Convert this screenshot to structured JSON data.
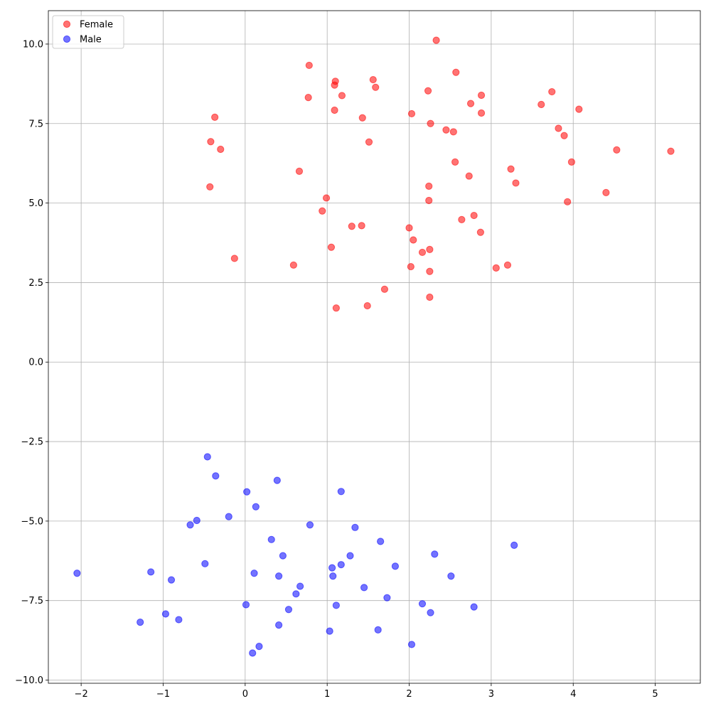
{
  "chart_data": {
    "type": "scatter",
    "title": "",
    "xlabel": "",
    "ylabel": "",
    "xlim": [
      -2.4,
      5.55
    ],
    "ylim": [
      -10.1,
      11.05
    ],
    "grid": true,
    "legend_position": "top-left",
    "xticks": [
      "−2",
      "−1",
      "0",
      "1",
      "2",
      "3",
      "4",
      "5"
    ],
    "xtick_values": [
      -2,
      -1,
      0,
      1,
      2,
      3,
      4,
      5
    ],
    "yticks": [
      "−10.0",
      "−7.5",
      "−5.0",
      "−2.5",
      "0.0",
      "2.5",
      "5.0",
      "7.5",
      "10.0"
    ],
    "ytick_values": [
      -10,
      -7.5,
      -5,
      -2.5,
      0,
      2.5,
      5,
      7.5,
      10
    ],
    "series": [
      {
        "name": "Female",
        "color": "#ff0000",
        "alpha": 0.55,
        "points": [
          [
            2.33,
            10.12
          ],
          [
            0.78,
            9.33
          ],
          [
            2.57,
            9.11
          ],
          [
            1.56,
            8.88
          ],
          [
            1.1,
            8.83
          ],
          [
            1.09,
            8.71
          ],
          [
            1.59,
            8.64
          ],
          [
            2.23,
            8.53
          ],
          [
            3.74,
            8.5
          ],
          [
            2.88,
            8.39
          ],
          [
            1.18,
            8.38
          ],
          [
            0.77,
            8.32
          ],
          [
            2.75,
            8.13
          ],
          [
            3.61,
            8.1
          ],
          [
            4.07,
            7.95
          ],
          [
            1.09,
            7.92
          ],
          [
            2.88,
            7.83
          ],
          [
            2.03,
            7.81
          ],
          [
            -0.37,
            7.7
          ],
          [
            1.43,
            7.68
          ],
          [
            2.26,
            7.5
          ],
          [
            3.82,
            7.35
          ],
          [
            2.45,
            7.3
          ],
          [
            2.54,
            7.24
          ],
          [
            3.89,
            7.12
          ],
          [
            -0.42,
            6.93
          ],
          [
            1.51,
            6.92
          ],
          [
            -0.3,
            6.69
          ],
          [
            4.53,
            6.67
          ],
          [
            5.19,
            6.63
          ],
          [
            2.56,
            6.29
          ],
          [
            3.98,
            6.29
          ],
          [
            3.24,
            6.07
          ],
          [
            0.66,
            6.0
          ],
          [
            2.73,
            5.85
          ],
          [
            3.3,
            5.63
          ],
          [
            -0.43,
            5.51
          ],
          [
            2.24,
            5.53
          ],
          [
            4.4,
            5.33
          ],
          [
            0.99,
            5.16
          ],
          [
            2.24,
            5.08
          ],
          [
            3.93,
            5.04
          ],
          [
            0.94,
            4.75
          ],
          [
            2.79,
            4.61
          ],
          [
            2.64,
            4.48
          ],
          [
            1.3,
            4.27
          ],
          [
            1.42,
            4.29
          ],
          [
            2.0,
            4.22
          ],
          [
            2.87,
            4.08
          ],
          [
            2.05,
            3.84
          ],
          [
            1.05,
            3.61
          ],
          [
            2.25,
            3.54
          ],
          [
            2.16,
            3.45
          ],
          [
            -0.13,
            3.26
          ],
          [
            0.59,
            3.05
          ],
          [
            3.2,
            3.05
          ],
          [
            2.02,
            3.0
          ],
          [
            3.06,
            2.96
          ],
          [
            2.25,
            2.85
          ],
          [
            1.7,
            2.29
          ],
          [
            2.25,
            2.04
          ],
          [
            1.49,
            1.77
          ],
          [
            1.11,
            1.7
          ]
        ]
      },
      {
        "name": "Male",
        "color": "#0000ff",
        "alpha": 0.55,
        "points": [
          [
            -0.46,
            -2.98
          ],
          [
            -0.36,
            -3.58
          ],
          [
            0.39,
            -3.72
          ],
          [
            0.02,
            -4.08
          ],
          [
            1.17,
            -4.07
          ],
          [
            0.13,
            -4.55
          ],
          [
            -0.2,
            -4.86
          ],
          [
            -0.59,
            -4.98
          ],
          [
            -0.67,
            -5.12
          ],
          [
            0.79,
            -5.12
          ],
          [
            1.34,
            -5.2
          ],
          [
            0.32,
            -5.58
          ],
          [
            1.65,
            -5.64
          ],
          [
            3.28,
            -5.76
          ],
          [
            0.46,
            -6.09
          ],
          [
            1.28,
            -6.09
          ],
          [
            2.31,
            -6.04
          ],
          [
            -0.49,
            -6.34
          ],
          [
            1.17,
            -6.37
          ],
          [
            1.83,
            -6.42
          ],
          [
            1.06,
            -6.47
          ],
          [
            -2.05,
            -6.64
          ],
          [
            -1.15,
            -6.6
          ],
          [
            0.11,
            -6.64
          ],
          [
            0.41,
            -6.73
          ],
          [
            1.07,
            -6.73
          ],
          [
            2.51,
            -6.73
          ],
          [
            -0.9,
            -6.85
          ],
          [
            0.67,
            -7.05
          ],
          [
            1.45,
            -7.09
          ],
          [
            0.62,
            -7.29
          ],
          [
            1.73,
            -7.41
          ],
          [
            2.16,
            -7.6
          ],
          [
            0.01,
            -7.63
          ],
          [
            1.11,
            -7.65
          ],
          [
            2.79,
            -7.7
          ],
          [
            0.53,
            -7.78
          ],
          [
            2.26,
            -7.88
          ],
          [
            -0.97,
            -7.92
          ],
          [
            -0.81,
            -8.1
          ],
          [
            -1.28,
            -8.18
          ],
          [
            0.41,
            -8.27
          ],
          [
            1.62,
            -8.42
          ],
          [
            1.03,
            -8.46
          ],
          [
            2.03,
            -8.88
          ],
          [
            0.17,
            -8.94
          ],
          [
            0.09,
            -9.15
          ]
        ]
      }
    ]
  }
}
